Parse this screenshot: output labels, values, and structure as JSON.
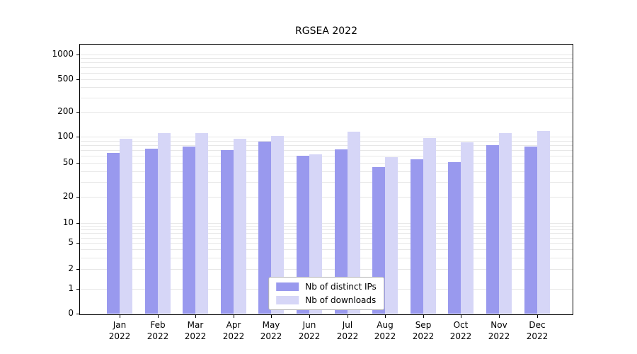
{
  "chart_data": {
    "type": "bar",
    "title": "RGSEA 2022",
    "categories": [
      "Jan",
      "Feb",
      "Mar",
      "Apr",
      "May",
      "Jun",
      "Jul",
      "Aug",
      "Sep",
      "Oct",
      "Nov",
      "Dec"
    ],
    "year_label": "2022",
    "series": [
      {
        "name": "Nb of distinct IPs",
        "color": "#9999ee",
        "values": [
          65,
          73,
          77,
          70,
          88,
          60,
          71,
          44,
          55,
          51,
          79,
          77
        ]
      },
      {
        "name": "Nb of downloads",
        "color": "#d6d6f7",
        "values": [
          95,
          110,
          110,
          94,
          102,
          62,
          115,
          58,
          97,
          86,
          110,
          118
        ]
      }
    ],
    "yscale": "symlog",
    "yticks": [
      0,
      1,
      2,
      5,
      10,
      20,
      50,
      100,
      200,
      500,
      1000
    ],
    "ylim": [
      0,
      1000
    ],
    "grid": true,
    "legend_position": "lower center"
  }
}
